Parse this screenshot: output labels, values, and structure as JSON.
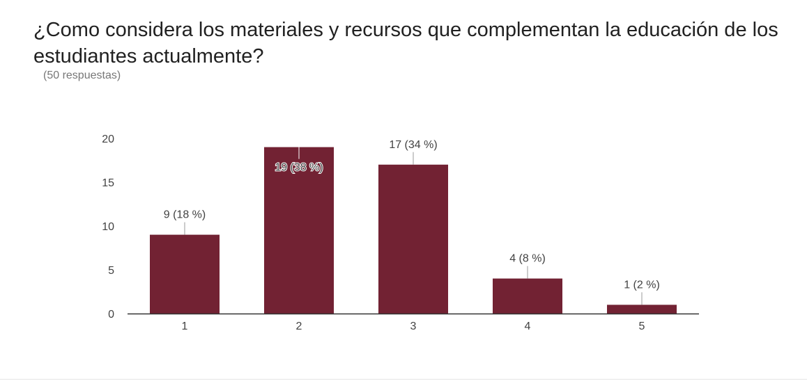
{
  "question": {
    "title": "¿Como considera los materiales y recursos que complementan la educación de los estudiantes actualmente?",
    "responses": "(50 respuestas)"
  },
  "colors": {
    "bar": "#722233",
    "axis": "#333333",
    "text": "#424242"
  },
  "chart_data": {
    "type": "bar",
    "title": "",
    "xlabel": "",
    "ylabel": "",
    "categories": [
      "1",
      "2",
      "3",
      "4",
      "5"
    ],
    "values": [
      9,
      19,
      17,
      4,
      1
    ],
    "data_labels": [
      "9 (18 %)",
      "19 (38 %)",
      "17 (34 %)",
      "4 (8 %)",
      "1 (2 %)"
    ],
    "y_ticks": [
      0,
      5,
      10,
      15,
      20
    ],
    "ylim": [
      0,
      20
    ],
    "grid": false,
    "legend": "none"
  }
}
